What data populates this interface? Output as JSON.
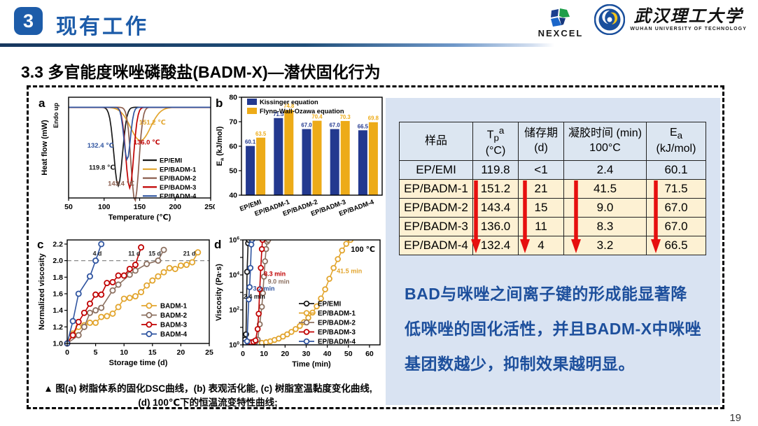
{
  "header": {
    "number": "3",
    "title": "现有工作",
    "accent_color": "#1d5ca9",
    "logos": {
      "nexcel_label": "NEXCEL",
      "wut_cn": "武汉理工大学",
      "wut_en": "WUHAN UNIVERSITY OF TECHNOLOGY"
    }
  },
  "section_title": "3.3 多官能度咪唑磷酸盐(BADM-X)—潜伏固化行为",
  "table": {
    "header_bg": "#dce6f1",
    "highlight_bg": "#fdf1d3",
    "arrow_color": "#e60f0f",
    "columns": [
      {
        "label": "样品"
      },
      {
        "base": "T",
        "sub": "p",
        "sup": "a",
        "line2": "(°C)"
      },
      {
        "line1": "储存期",
        "line2": "(d)"
      },
      {
        "line1": "凝胶时间 (min)",
        "line2": "100°C"
      },
      {
        "base": "E",
        "sub": "a",
        "line2": "(kJ/mol)"
      }
    ],
    "rows": [
      {
        "sample": "EP/EMI",
        "tp": "119.8",
        "storage": "<1",
        "gel": "2.4",
        "ea": "60.1",
        "highlight": false
      },
      {
        "sample": "EP/BADM-1",
        "tp": "151.2",
        "storage": "21",
        "gel": "41.5",
        "ea": "71.5",
        "highlight": true
      },
      {
        "sample": "EP/BADM-2",
        "tp": "143.4",
        "storage": "15",
        "gel": "9.0",
        "ea": "67.0",
        "highlight": true
      },
      {
        "sample": "EP/BADM-3",
        "tp": "136.0",
        "storage": "11",
        "gel": "8.3",
        "ea": "67.0",
        "highlight": true
      },
      {
        "sample": "EP/BADM-4",
        "tp": "132.4",
        "storage": "4",
        "gel": "3.2",
        "ea": "66.5",
        "highlight": true
      }
    ]
  },
  "summary": {
    "text": "BAD与咪唑之间离子键的形成能显著降低咪唑的固化活性，并且BADM-X中咪唑基团数越少，抑制效果越明显。",
    "text_color": "#1d4f9c",
    "panel_color": "#d9e3f2"
  },
  "caption": {
    "line1": "▲ 图(a) 树脂体系的固化DSC曲线，(b) 表观活化能, (c) 树脂室温黏度变化曲线,",
    "line2": "(d) 100℃下的恒温流变特性曲线;"
  },
  "page_number": "19",
  "chart_data": [
    {
      "id": "a",
      "type": "line",
      "panel": "a",
      "xlabel": "Temperature (℃)",
      "ylabel": "Heat flow (mW)",
      "ylabel2": "Endo up",
      "xlim": [
        50,
        250
      ],
      "xticks": [
        50,
        100,
        150,
        200,
        250
      ],
      "series": [
        {
          "name": "EP/EMI",
          "color": "#1a1a1a",
          "peak_c": 119.8,
          "depth": 0.78,
          "width": 6
        },
        {
          "name": "EP/BADM-1",
          "color": "#E2A52E",
          "peak_c": 151.2,
          "depth": 0.33,
          "width": 14
        },
        {
          "name": "EP/BADM-2",
          "color": "#8C5F4F",
          "peak_c": 143.4,
          "depth": 0.93,
          "width": 5.5
        },
        {
          "name": "EP/BADM-3",
          "color": "#C00000",
          "peak_c": 136.0,
          "depth": 0.8,
          "width": 5.5
        },
        {
          "name": "EP/BADM-4",
          "color": "#2F54A0",
          "peak_c": 132.4,
          "depth": 0.52,
          "width": 4.5
        }
      ],
      "annotations": [
        {
          "text": "151.2 ℃",
          "x": 168,
          "f": 0.27,
          "color": "#E2A52E"
        },
        {
          "text": "136.0 ℃",
          "x": 160,
          "f": 0.47,
          "color": "#C00000"
        },
        {
          "text": "132.4 ℃",
          "x": 95,
          "f": 0.5,
          "color": "#2F54A0"
        },
        {
          "text": "119.8 ℃",
          "x": 97,
          "f": 0.72,
          "color": "#1a1a1a"
        },
        {
          "text": "143.4 ℃",
          "x": 124,
          "f": 0.88,
          "color": "#8C5F4F"
        }
      ]
    },
    {
      "id": "b",
      "type": "bar",
      "panel": "b",
      "ylabel_base": "E",
      "ylabel_sub": "a",
      "ylabel_rest": " (kJ/mol)",
      "ylim": [
        40,
        80
      ],
      "yticks": [
        40,
        50,
        60,
        70,
        80
      ],
      "categories": [
        "EP/EMI",
        "EP/BADM-1",
        "EP/BADM-2",
        "EP/BADM-3",
        "EP/BADM-4"
      ],
      "series": [
        {
          "name": "Kissinger equation",
          "color": "#23398F",
          "values": [
            60.1,
            71.5,
            67.0,
            67.0,
            66.5
          ]
        },
        {
          "name": "Flynn-Wall-Ozawa equation",
          "color": "#EDAB18",
          "values": [
            63.5,
            74.8,
            70.4,
            70.3,
            69.8
          ]
        }
      ]
    },
    {
      "id": "c",
      "type": "scatter-line",
      "panel": "c",
      "xlabel": "Storage time (d)",
      "ylabel": "Normalized viscosity",
      "xlim": [
        0,
        25
      ],
      "xticks": [
        0,
        5,
        10,
        15,
        20,
        25
      ],
      "ylim": [
        1.0,
        2.25
      ],
      "yticks": [
        1.0,
        1.2,
        1.4,
        1.6,
        1.8,
        2.0,
        2.2
      ],
      "ref_line_y": 2.0,
      "series": [
        {
          "name": "BADM-1",
          "color": "#E2A52E",
          "points": [
            [
              0,
              1.0
            ],
            [
              1,
              1.12
            ],
            [
              2,
              1.2
            ],
            [
              3,
              1.22
            ],
            [
              4,
              1.25
            ],
            [
              5,
              1.25
            ],
            [
              6,
              1.32
            ],
            [
              7,
              1.33
            ],
            [
              8,
              1.36
            ],
            [
              9,
              1.44
            ],
            [
              10,
              1.54
            ],
            [
              11,
              1.55
            ],
            [
              12,
              1.57
            ],
            [
              13,
              1.62
            ],
            [
              14,
              1.7
            ],
            [
              15,
              1.76
            ],
            [
              16,
              1.81
            ],
            [
              17,
              1.86
            ],
            [
              18,
              1.91
            ],
            [
              19,
              1.9
            ],
            [
              20,
              1.94
            ],
            [
              21,
              1.95
            ],
            [
              22,
              1.98
            ],
            [
              23,
              2.1
            ]
          ]
        },
        {
          "name": "BADM-2",
          "color": "#8C7060",
          "points": [
            [
              0,
              1.0
            ],
            [
              2,
              1.1
            ],
            [
              3,
              1.2
            ],
            [
              4,
              1.37
            ],
            [
              5,
              1.4
            ],
            [
              6,
              1.43
            ],
            [
              8,
              1.64
            ],
            [
              9,
              1.71
            ],
            [
              11,
              1.83
            ],
            [
              12,
              1.88
            ],
            [
              14,
              1.96
            ],
            [
              16,
              2.0
            ],
            [
              17,
              2.13
            ]
          ]
        },
        {
          "name": "BADM-3",
          "color": "#C00000",
          "points": [
            [
              0,
              1.0
            ],
            [
              1,
              1.1
            ],
            [
              2,
              1.26
            ],
            [
              3,
              1.37
            ],
            [
              4,
              1.48
            ],
            [
              5,
              1.59
            ],
            [
              6,
              1.59
            ],
            [
              7,
              1.73
            ],
            [
              8,
              1.74
            ],
            [
              9,
              1.82
            ],
            [
              10,
              1.82
            ],
            [
              11,
              1.9
            ],
            [
              12,
              1.95
            ],
            [
              13,
              2.16
            ]
          ]
        },
        {
          "name": "BADM-4",
          "color": "#2F54A0",
          "points": [
            [
              0,
              1.0
            ],
            [
              1,
              1.27
            ],
            [
              2,
              1.6
            ],
            [
              4,
              1.81
            ],
            [
              5,
              2.0
            ],
            [
              6,
              2.2
            ]
          ]
        }
      ],
      "annotations": [
        {
          "text": "4 d",
          "x": 5.3,
          "y": 2.06
        },
        {
          "text": "11 d",
          "x": 11.8,
          "y": 2.06
        },
        {
          "text": "15 d",
          "x": 15.4,
          "y": 2.06
        },
        {
          "text": "21 d",
          "x": 21.5,
          "y": 2.06
        }
      ]
    },
    {
      "id": "d",
      "type": "line-log",
      "panel": "d",
      "xlabel": "Time (min)",
      "ylabel": "Viscosity (Pa·s)",
      "xlim": [
        0,
        65
      ],
      "xticks": [
        0,
        10,
        20,
        30,
        40,
        50,
        60
      ],
      "ylog_decades": [
        0,
        6
      ],
      "ytick_labeled": [
        0,
        2,
        4,
        6
      ],
      "temp_label": "100 ℃",
      "series": [
        {
          "name": "EP/EMI",
          "color": "#1a1a1a",
          "points": [
            [
              0.5,
              1.4
            ],
            [
              1,
              2
            ],
            [
              1.5,
              4
            ],
            [
              2,
              15000
            ],
            [
              2.5,
              650000
            ],
            [
              2.8,
              1000000
            ]
          ]
        },
        {
          "name": "EP/BADM-1",
          "color": "#E2A52E",
          "points": [
            [
              1,
              1.1
            ],
            [
              3,
              1.1
            ],
            [
              5,
              1.2
            ],
            [
              7,
              1.2
            ],
            [
              9,
              1.3
            ],
            [
              11,
              1.4
            ],
            [
              13,
              1.6
            ],
            [
              15,
              1.9
            ],
            [
              17,
              2.3
            ],
            [
              19,
              3
            ],
            [
              21,
              4
            ],
            [
              23,
              5.5
            ],
            [
              25,
              8
            ],
            [
              27,
              12
            ],
            [
              29,
              20
            ],
            [
              31,
              35
            ],
            [
              33,
              70
            ],
            [
              35,
              160
            ],
            [
              37,
              450
            ],
            [
              39,
              1500
            ],
            [
              41,
              6000
            ],
            [
              43,
              25000
            ],
            [
              45,
              80000
            ],
            [
              47,
              250000
            ],
            [
              49,
              600000
            ],
            [
              51,
              1000000
            ]
          ]
        },
        {
          "name": "EP/BADM-2",
          "color": "#8C7060",
          "points": [
            [
              1,
              1.2
            ],
            [
              2,
              1.2
            ],
            [
              3,
              1.3
            ],
            [
              4,
              1.3
            ],
            [
              5,
              1.4
            ],
            [
              6,
              1.5
            ],
            [
              7,
              2
            ],
            [
              8,
              15
            ],
            [
              9,
              150
            ],
            [
              9.5,
              900
            ],
            [
              10,
              8000
            ],
            [
              10.5,
              60000
            ],
            [
              11,
              300000
            ],
            [
              11.5,
              800000
            ],
            [
              12,
              1000000
            ]
          ]
        },
        {
          "name": "EP/BADM-3",
          "color": "#C00000",
          "points": [
            [
              1,
              1.3
            ],
            [
              2,
              1.3
            ],
            [
              3,
              1.4
            ],
            [
              4,
              1.4
            ],
            [
              5,
              1.5
            ],
            [
              6,
              1.8
            ],
            [
              7,
              8
            ],
            [
              7.5,
              60
            ],
            [
              8,
              1500
            ],
            [
              8.5,
              25000
            ],
            [
              9,
              300000
            ],
            [
              9.3,
              1000000
            ]
          ]
        },
        {
          "name": "EP/BADM-4",
          "color": "#2F54A0",
          "points": [
            [
              0.5,
              1.2
            ],
            [
              1,
              1.3
            ],
            [
              2,
              1.6
            ],
            [
              2.8,
              400
            ],
            [
              3.2,
              2000
            ],
            [
              3.6,
              25000
            ],
            [
              4,
              550000
            ],
            [
              4.3,
              1000000
            ]
          ]
        }
      ],
      "annotations": [
        {
          "text": "8.3 min",
          "x": 10,
          "lg": 3.95,
          "color": "#C00000"
        },
        {
          "text": "9.0 min",
          "x": 11.8,
          "lg": 3.5,
          "color": "#8C7060"
        },
        {
          "text": "3.2 min",
          "x": 4.8,
          "lg": 3.1,
          "color": "#2F54A0"
        },
        {
          "text": "2.4 min",
          "x": 0.3,
          "lg": 2.65,
          "color": "#1a1a1a"
        },
        {
          "text": "41.5 min",
          "x": 44.5,
          "lg": 4.1,
          "color": "#E2A52E"
        }
      ]
    }
  ]
}
